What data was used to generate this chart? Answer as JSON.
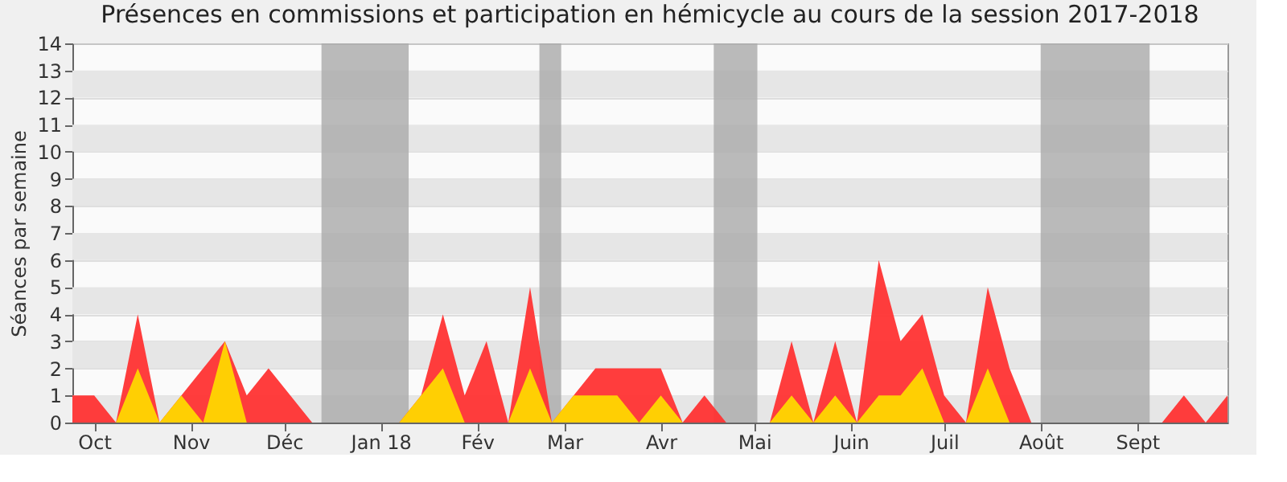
{
  "chart_data": {
    "type": "area",
    "title": "Présences en commissions et participation en hémicycle au cours de la session 2017-2018",
    "ylabel": "Séances par semaine",
    "x": [
      "2017-09-24",
      "2017-10-01",
      "2017-10-08",
      "2017-10-15",
      "2017-10-22",
      "2017-10-29",
      "2017-11-05",
      "2017-11-12",
      "2017-11-19",
      "2017-11-26",
      "2017-12-03",
      "2017-12-10",
      "2017-12-17",
      "2017-12-24",
      "2017-12-31",
      "2018-01-07",
      "2018-01-14",
      "2018-01-21",
      "2018-01-28",
      "2018-02-04",
      "2018-02-11",
      "2018-02-18",
      "2018-02-25",
      "2018-03-04",
      "2018-03-11",
      "2018-03-18",
      "2018-03-25",
      "2018-04-01",
      "2018-04-08",
      "2018-04-15",
      "2018-04-22",
      "2018-04-29",
      "2018-05-06",
      "2018-05-13",
      "2018-05-20",
      "2018-05-27",
      "2018-06-03",
      "2018-06-10",
      "2018-06-17",
      "2018-06-24",
      "2018-07-01",
      "2018-07-08",
      "2018-07-15",
      "2018-07-22",
      "2018-07-29",
      "2018-08-05",
      "2018-08-12",
      "2018-08-19",
      "2018-08-26",
      "2018-09-02",
      "2018-09-09",
      "2018-09-16",
      "2018-09-23",
      "2018-09-30"
    ],
    "series": [
      {
        "color": "#ff3333",
        "values": [
          1,
          1,
          0,
          4,
          0,
          1,
          2,
          3,
          1,
          2,
          1,
          0,
          0,
          0,
          0,
          0,
          1,
          4,
          1,
          3,
          0,
          5,
          0,
          1,
          2,
          2,
          2,
          2,
          0,
          1,
          0,
          0,
          0,
          3,
          0,
          3,
          0,
          6,
          3,
          4,
          1,
          0,
          5,
          2,
          0,
          0,
          0,
          0,
          0,
          0,
          0,
          1,
          0,
          1
        ]
      },
      {
        "color": "#ffd700",
        "values": [
          0,
          0,
          0,
          2,
          0,
          1,
          0,
          3,
          0,
          0,
          0,
          0,
          0,
          0,
          0,
          0,
          1,
          2,
          0,
          0,
          0,
          2,
          0,
          1,
          1,
          1,
          0,
          1,
          0,
          0,
          0,
          0,
          0,
          1,
          0,
          1,
          0,
          1,
          1,
          2,
          0,
          0,
          2,
          0,
          0,
          0,
          0,
          0,
          0,
          0,
          0,
          0,
          0,
          0
        ]
      }
    ],
    "xlim": [
      "2017-09-24",
      "2018-09-30"
    ],
    "xticks": [
      {
        "value": "2017-10-01",
        "label": "Oct"
      },
      {
        "value": "2017-11-01",
        "label": "Nov"
      },
      {
        "value": "2017-12-01",
        "label": "Déc"
      },
      {
        "value": "2018-01-01",
        "label": "Jan 18"
      },
      {
        "value": "2018-02-01",
        "label": "Fév"
      },
      {
        "value": "2018-03-01",
        "label": "Mar"
      },
      {
        "value": "2018-04-01",
        "label": "Avr"
      },
      {
        "value": "2018-05-01",
        "label": "Mai"
      },
      {
        "value": "2018-06-01",
        "label": "Juin"
      },
      {
        "value": "2018-07-01",
        "label": "Juil"
      },
      {
        "value": "2018-08-01",
        "label": "Août"
      },
      {
        "value": "2018-09-01",
        "label": "Sept"
      }
    ],
    "ylim": [
      0,
      14
    ],
    "yticks": [
      0,
      1,
      2,
      3,
      4,
      5,
      6,
      7,
      8,
      9,
      10,
      11,
      12,
      13,
      14
    ],
    "bands": [
      {
        "axis": "x",
        "from": "2017-12-13",
        "to": "2018-01-10",
        "color": "#aaaaaa"
      },
      {
        "axis": "x",
        "from": "2018-02-21",
        "to": "2018-02-28",
        "color": "#aaaaaa"
      },
      {
        "axis": "x",
        "from": "2018-04-18",
        "to": "2018-05-02",
        "color": "#aaaaaa"
      },
      {
        "axis": "x",
        "from": "2018-08-01",
        "to": "2018-09-05",
        "color": "#aaaaaa"
      }
    ],
    "grid": "y"
  }
}
